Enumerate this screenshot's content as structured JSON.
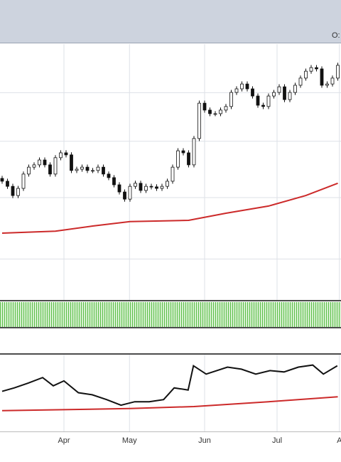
{
  "header": {
    "label": "O:"
  },
  "chart_data": [
    {
      "type": "candlestick",
      "x": [
        0,
        1,
        2,
        3,
        4,
        5,
        6,
        7,
        8,
        9,
        10,
        11,
        12,
        13,
        14,
        15,
        16,
        17,
        18,
        19,
        20,
        21,
        22,
        23,
        24,
        25,
        26,
        27,
        28,
        29,
        30,
        31,
        32,
        33,
        34,
        35,
        36,
        37,
        38,
        39,
        40,
        41,
        42,
        43,
        44,
        45,
        46,
        47,
        48,
        49,
        50,
        51,
        52,
        53,
        54,
        55,
        56,
        57,
        58,
        59,
        60,
        61,
        62,
        63
      ],
      "open": [
        47.5,
        46.4,
        44.4,
        40.8,
        43.6,
        49.2,
        51.9,
        52.8,
        54.7,
        52.8,
        49.2,
        55.6,
        57.5,
        56.7,
        50.6,
        51.1,
        51.9,
        50.6,
        50.6,
        51.9,
        49.2,
        47.8,
        45,
        42.2,
        39.4,
        44.4,
        45.6,
        42.8,
        44.4,
        44.2,
        43.6,
        44.4,
        46.4,
        51.9,
        58.3,
        57.5,
        52.8,
        63.1,
        76.9,
        74.2,
        72.8,
        72.8,
        74.2,
        75.6,
        81.1,
        82.5,
        84.4,
        82.5,
        79.7,
        76.1,
        75.6,
        79.7,
        81.1,
        83.3,
        78.3,
        81.1,
        83.9,
        86.7,
        89.4,
        90.8,
        90.3,
        83.9,
        84.4,
        86.7
      ],
      "high": [
        48.5,
        47.4,
        45.4,
        44.6,
        50.2,
        52.9,
        53.8,
        55.7,
        55.7,
        53.8,
        56.6,
        58.5,
        58.5,
        57.7,
        52.1,
        52.9,
        52.9,
        51.6,
        52.9,
        52.9,
        50.2,
        48.8,
        46,
        43.2,
        45.4,
        46.6,
        46.6,
        45.4,
        45.4,
        45.2,
        45.4,
        47.4,
        52.9,
        59.3,
        59.3,
        58.5,
        64.1,
        77.9,
        77.9,
        75.2,
        73.8,
        75.2,
        76.6,
        82.1,
        83.5,
        85.4,
        85.4,
        83.5,
        80.7,
        77.1,
        80.7,
        82.1,
        84.3,
        84.3,
        82.1,
        84.9,
        87.7,
        90.4,
        91.8,
        91.8,
        91.3,
        85.4,
        87.7,
        92.7
      ],
      "low": [
        45.4,
        43.4,
        39.8,
        39.8,
        42.6,
        48.2,
        50.9,
        51.8,
        51.8,
        48.2,
        48.2,
        54.6,
        55.7,
        49.6,
        49.6,
        50.1,
        49.6,
        49.6,
        49.6,
        48.2,
        46.8,
        44,
        41.2,
        38.4,
        38.4,
        43.4,
        41.8,
        41.8,
        43.2,
        42.6,
        42.6,
        43.4,
        45.4,
        50.9,
        56.5,
        51.8,
        51.8,
        62.1,
        73.2,
        71.8,
        71.8,
        71.8,
        73.2,
        74.6,
        80.1,
        81.5,
        81.5,
        78.7,
        75.1,
        74.6,
        74.6,
        78.7,
        80.1,
        77.3,
        77.3,
        80.1,
        82.9,
        85.7,
        88.4,
        89.3,
        82.9,
        82.9,
        83.4,
        85.7
      ],
      "close": [
        46.4,
        44.4,
        40.8,
        43.6,
        49.2,
        51.9,
        52.8,
        54.7,
        52.8,
        49.2,
        55.6,
        57.5,
        56.7,
        50.6,
        51.1,
        51.9,
        50.6,
        50.6,
        51.9,
        49.2,
        47.8,
        45,
        42.2,
        39.4,
        44.4,
        45.6,
        42.8,
        44.4,
        44.2,
        43.6,
        44.4,
        46.4,
        51.9,
        58.3,
        57.5,
        52.8,
        63.1,
        76.9,
        74.2,
        72.8,
        72.8,
        74.2,
        75.6,
        81.1,
        82.5,
        84.4,
        82.5,
        79.7,
        76.1,
        75.6,
        79.7,
        81.1,
        83.3,
        78.3,
        81.1,
        83.9,
        86.7,
        89.4,
        90.8,
        90.3,
        83.9,
        84.4,
        86.7,
        91.7
      ],
      "overlay": {
        "color": "#cc2a2a",
        "x": [
          0,
          10,
          17,
          24,
          35,
          42,
          50,
          57,
          63
        ],
        "values": [
          26.1,
          26.9,
          28.9,
          30.6,
          31.1,
          33.9,
          36.7,
          40.8,
          45.6
        ]
      },
      "ylim": [
        0,
        100
      ],
      "xlim": [
        -0.4,
        63.6
      ],
      "yticks": [
        16,
        40,
        62,
        81
      ],
      "grid": true
    },
    {
      "type": "line",
      "series": [
        {
          "color": "#111111",
          "x": [
            0,
            2.3,
            4.9,
            7.6,
            9.6,
            11.6,
            14.3,
            16.9,
            19.6,
            22.3,
            24.9,
            27.6,
            30.3,
            32.3,
            34.9,
            35.9,
            38.3,
            42.3,
            44.9,
            47.6,
            50.3,
            52.9,
            55.6,
            58.3,
            60.3,
            62.9
          ],
          "values": [
            52.3,
            56.9,
            63.3,
            70.6,
            59.6,
            66.1,
            50.5,
            47.7,
            41.3,
            33.9,
            38.5,
            38.5,
            41.3,
            56.9,
            54.1,
            86.2,
            75.2,
            84.4,
            81.7,
            75.2,
            79.8,
            78,
            84.4,
            87.2,
            75.2,
            86.2
          ]
        },
        {
          "color": "#cc2a2a",
          "x": [
            0,
            24,
            36,
            50,
            63
          ],
          "values": [
            26.6,
            29.4,
            32.1,
            38.5,
            45
          ]
        }
      ],
      "xlim": [
        -0.4,
        63.6
      ],
      "ylim": [
        0,
        100
      ],
      "xticks": [
        {
          "value": 11.6,
          "label": "Apr"
        },
        {
          "value": 23.9,
          "label": "May"
        },
        {
          "value": 38,
          "label": "Jun"
        },
        {
          "value": 51.6,
          "label": "Jul"
        },
        {
          "value": 63.3,
          "label": "A"
        }
      ],
      "grid": true
    }
  ]
}
